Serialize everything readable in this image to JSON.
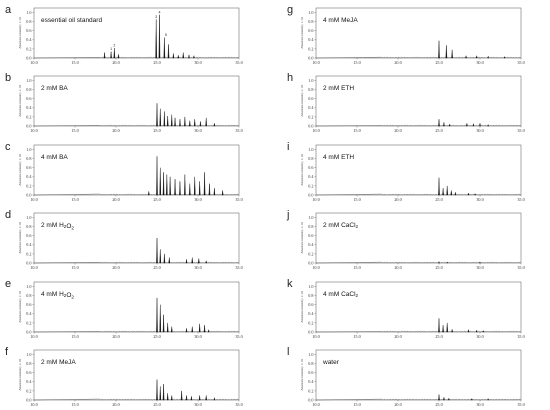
{
  "figure": {
    "y_axis_label": "Absolute intensity x 10",
    "x_ticks": [
      "10.0",
      "15.0",
      "20.0",
      "25.0",
      "30.0",
      "35.0"
    ],
    "y_ticks": [
      "0.0",
      "0.2",
      "0.4",
      "0.6",
      "0.8",
      "1.0"
    ],
    "peak_markers": [
      "1",
      "2",
      "3",
      "4",
      "5"
    ]
  },
  "chart_data": [
    {
      "label": "a",
      "type": "line",
      "title": "essential oil standard",
      "xlim": [
        10,
        35
      ],
      "ylim": [
        0,
        1.1
      ],
      "peaks": [
        [
          18.6,
          0.12
        ],
        [
          19.4,
          0.14
        ],
        [
          19.8,
          0.22
        ],
        [
          20.3,
          0.08
        ],
        [
          24.9,
          0.85
        ],
        [
          25.3,
          0.95
        ],
        [
          25.9,
          0.45
        ],
        [
          26.4,
          0.3
        ],
        [
          27.0,
          0.1
        ],
        [
          27.6,
          0.06
        ],
        [
          28.2,
          0.12
        ],
        [
          28.9,
          0.07
        ],
        [
          29.5,
          0.05
        ]
      ]
    },
    {
      "label": "b",
      "type": "line",
      "title": "2 mM BA",
      "xlim": [
        10,
        35
      ],
      "ylim": [
        0,
        1.1
      ],
      "peaks": [
        [
          25.0,
          0.5
        ],
        [
          25.4,
          0.38
        ],
        [
          25.9,
          0.32
        ],
        [
          26.3,
          0.22
        ],
        [
          26.8,
          0.25
        ],
        [
          27.2,
          0.18
        ],
        [
          27.8,
          0.15
        ],
        [
          28.4,
          0.2
        ],
        [
          29.0,
          0.12
        ],
        [
          29.6,
          0.15
        ],
        [
          30.3,
          0.1
        ],
        [
          31.0,
          0.18
        ],
        [
          32.0,
          0.06
        ]
      ]
    },
    {
      "label": "c",
      "type": "line",
      "title": "4 mM BA",
      "xlim": [
        10,
        35
      ],
      "ylim": [
        0,
        1.1
      ],
      "peaks": [
        [
          24.0,
          0.08
        ],
        [
          25.0,
          0.85
        ],
        [
          25.4,
          0.6
        ],
        [
          25.8,
          0.5
        ],
        [
          26.2,
          0.45
        ],
        [
          26.6,
          0.4
        ],
        [
          27.2,
          0.35
        ],
        [
          27.8,
          0.3
        ],
        [
          28.4,
          0.45
        ],
        [
          29.0,
          0.25
        ],
        [
          29.6,
          0.4
        ],
        [
          30.2,
          0.3
        ],
        [
          30.8,
          0.5
        ],
        [
          31.4,
          0.25
        ],
        [
          32.0,
          0.15
        ],
        [
          33.0,
          0.1
        ]
      ]
    },
    {
      "label": "d",
      "type": "line",
      "title": "2 mM H2O2",
      "xlim": [
        10,
        35
      ],
      "ylim": [
        0,
        1.1
      ],
      "peaks": [
        [
          25.0,
          0.55
        ],
        [
          25.4,
          0.3
        ],
        [
          25.9,
          0.2
        ],
        [
          26.5,
          0.12
        ],
        [
          28.6,
          0.08
        ],
        [
          29.3,
          0.12
        ],
        [
          30.1,
          0.1
        ],
        [
          31.0,
          0.05
        ]
      ]
    },
    {
      "label": "e",
      "type": "line",
      "title": "4 mM H2O2",
      "xlim": [
        10,
        35
      ],
      "ylim": [
        0,
        1.1
      ],
      "peaks": [
        [
          25.0,
          0.75
        ],
        [
          25.4,
          0.6
        ],
        [
          25.8,
          0.38
        ],
        [
          26.3,
          0.2
        ],
        [
          26.8,
          0.12
        ],
        [
          28.6,
          0.08
        ],
        [
          29.3,
          0.12
        ],
        [
          30.2,
          0.18
        ],
        [
          30.8,
          0.15
        ],
        [
          31.3,
          0.05
        ]
      ]
    },
    {
      "label": "f",
      "type": "line",
      "title": "2 mM MeJA",
      "xlim": [
        10,
        35
      ],
      "ylim": [
        0,
        1.1
      ],
      "peaks": [
        [
          25.0,
          0.45
        ],
        [
          25.4,
          0.3
        ],
        [
          25.8,
          0.35
        ],
        [
          26.3,
          0.15
        ],
        [
          26.8,
          0.1
        ],
        [
          28.0,
          0.2
        ],
        [
          28.6,
          0.1
        ],
        [
          29.2,
          0.08
        ],
        [
          30.2,
          0.1
        ],
        [
          31.0,
          0.1
        ],
        [
          32.0,
          0.05
        ]
      ]
    },
    {
      "label": "g",
      "type": "line",
      "title": "4 mM MeJA",
      "xlim": [
        10,
        35
      ],
      "ylim": [
        0,
        1.1
      ],
      "peaks": [
        [
          25.0,
          0.38
        ],
        [
          25.9,
          0.28
        ],
        [
          26.6,
          0.18
        ],
        [
          28.3,
          0.05
        ],
        [
          29.6,
          0.05
        ],
        [
          31.0,
          0.04
        ],
        [
          33.0,
          0.03
        ]
      ]
    },
    {
      "label": "h",
      "type": "line",
      "title": "2 mM ETH",
      "xlim": [
        10,
        35
      ],
      "ylim": [
        0,
        1.1
      ],
      "peaks": [
        [
          25.0,
          0.15
        ],
        [
          25.6,
          0.08
        ],
        [
          26.3,
          0.04
        ],
        [
          28.4,
          0.06
        ],
        [
          29.2,
          0.05
        ],
        [
          30.0,
          0.06
        ],
        [
          31.0,
          0.03
        ]
      ]
    },
    {
      "label": "i",
      "type": "line",
      "title": "4 mM ETH",
      "xlim": [
        10,
        35
      ],
      "ylim": [
        0,
        1.1
      ],
      "peaks": [
        [
          25.0,
          0.38
        ],
        [
          25.5,
          0.15
        ],
        [
          26.0,
          0.2
        ],
        [
          26.5,
          0.1
        ],
        [
          27.0,
          0.06
        ],
        [
          28.6,
          0.04
        ],
        [
          29.4,
          0.03
        ]
      ]
    },
    {
      "label": "j",
      "type": "line",
      "title": "2 mM CaCl2",
      "xlim": [
        10,
        35
      ],
      "ylim": [
        0,
        1.1
      ],
      "peaks": [
        [
          25.0,
          0.03
        ],
        [
          26.0,
          0.02
        ],
        [
          30.0,
          0.02
        ]
      ]
    },
    {
      "label": "k",
      "type": "line",
      "title": "4 mM CaCl2",
      "xlim": [
        10,
        35
      ],
      "ylim": [
        0,
        1.1
      ],
      "peaks": [
        [
          25.0,
          0.3
        ],
        [
          25.5,
          0.15
        ],
        [
          26.0,
          0.2
        ],
        [
          26.6,
          0.06
        ],
        [
          28.6,
          0.05
        ],
        [
          29.6,
          0.04
        ],
        [
          30.4,
          0.03
        ]
      ]
    },
    {
      "label": "l",
      "type": "line",
      "title": "water",
      "xlim": [
        10,
        35
      ],
      "ylim": [
        0,
        1.1
      ],
      "peaks": [
        [
          25.0,
          0.12
        ],
        [
          25.6,
          0.06
        ],
        [
          26.2,
          0.04
        ],
        [
          29.0,
          0.03
        ],
        [
          31.0,
          0.03
        ]
      ]
    }
  ]
}
